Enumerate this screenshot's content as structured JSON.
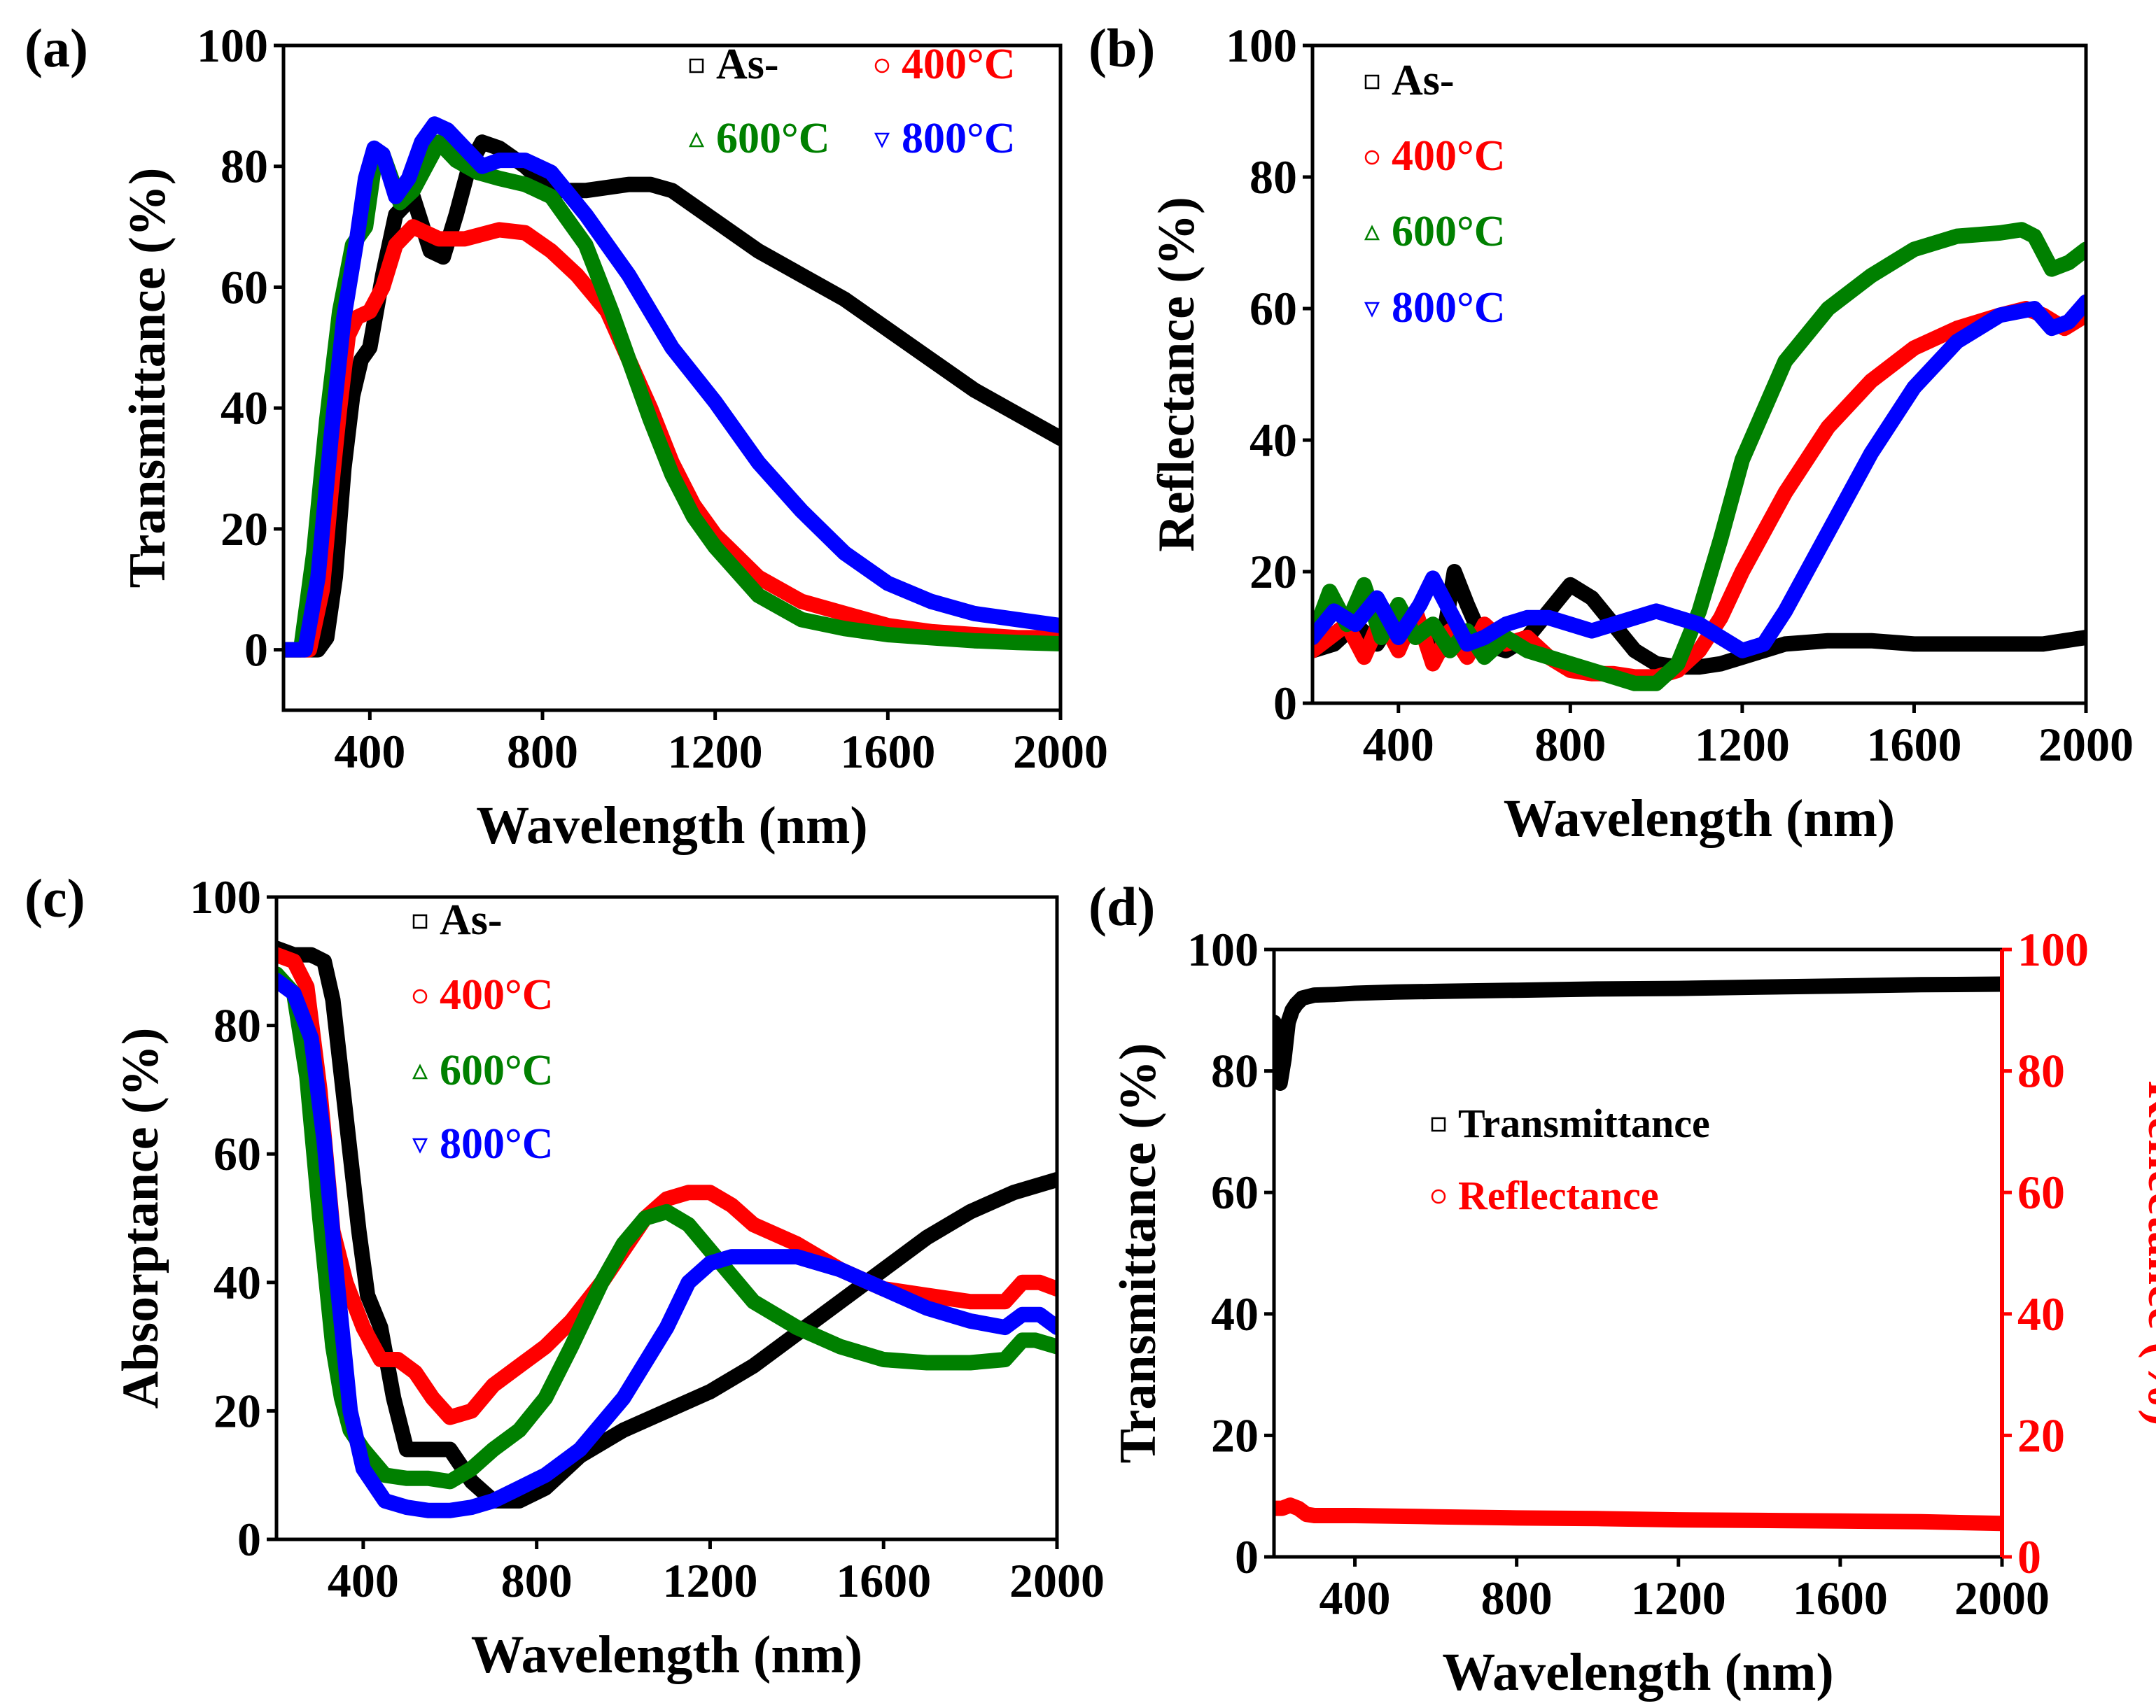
{
  "chart_data": [
    {
      "panel_label": "(a)",
      "type": "line",
      "xlabel": "Wavelength (nm)",
      "ylabel": "Transmittance (%)",
      "xlim": [
        200,
        2000
      ],
      "ylim": [
        -10,
        100
      ],
      "xticks": [
        400,
        800,
        1200,
        1600,
        2000
      ],
      "yticks": [
        0,
        20,
        40,
        60,
        80,
        100
      ],
      "grid": false,
      "legend": "top-right, two columns",
      "series": [
        {
          "name": "As-",
          "color": "#000000",
          "marker": "square",
          "x": [
            200,
            280,
            300,
            320,
            340,
            360,
            380,
            400,
            430,
            460,
            500,
            540,
            570,
            600,
            630,
            660,
            700,
            760,
            820,
            900,
            1000,
            1050,
            1100,
            1200,
            1300,
            1400,
            1500,
            1600,
            1700,
            1800,
            1900,
            2000
          ],
          "y": [
            0,
            0,
            2,
            12,
            30,
            42,
            48,
            50,
            62,
            72,
            75,
            66,
            65,
            72,
            80,
            84,
            83,
            80,
            76,
            76,
            77,
            77,
            76,
            71,
            66,
            62,
            58,
            53,
            48,
            43,
            39,
            35
          ]
        },
        {
          "name": "400°C",
          "color": "#ff0000",
          "marker": "circle",
          "x": [
            200,
            260,
            290,
            310,
            330,
            350,
            370,
            400,
            430,
            460,
            500,
            560,
            620,
            700,
            760,
            820,
            880,
            950,
            1000,
            1050,
            1100,
            1150,
            1200,
            1300,
            1400,
            1500,
            1600,
            1700,
            1800,
            1900,
            2000
          ],
          "y": [
            0,
            0,
            10,
            26,
            40,
            52,
            55,
            56,
            60,
            67,
            70,
            68,
            68,
            69.5,
            69,
            66,
            62,
            56,
            48,
            40,
            31,
            24,
            19,
            12,
            8,
            6,
            4,
            3,
            2.5,
            2,
            2
          ]
        },
        {
          "name": "600°C",
          "color": "#008000",
          "marker": "triangle-up",
          "x": [
            200,
            240,
            270,
            300,
            330,
            360,
            390,
            410,
            430,
            450,
            470,
            500,
            530,
            560,
            600,
            650,
            700,
            760,
            820,
            900,
            960,
            1000,
            1050,
            1100,
            1150,
            1200,
            1300,
            1400,
            1500,
            1600,
            1700,
            1800,
            1900,
            2000
          ],
          "y": [
            0,
            0,
            16,
            38,
            56,
            67,
            70,
            80,
            82,
            78,
            74,
            76,
            80,
            84,
            81,
            79,
            78,
            77,
            75,
            67,
            56,
            48,
            38,
            29,
            22,
            17,
            9,
            5,
            3.5,
            2.5,
            2,
            1.5,
            1.2,
            1
          ]
        },
        {
          "name": "800°C",
          "color": "#0000ff",
          "marker": "triangle-down",
          "x": [
            200,
            250,
            280,
            310,
            340,
            370,
            390,
            410,
            430,
            460,
            490,
            520,
            550,
            580,
            620,
            660,
            700,
            760,
            820,
            900,
            1000,
            1100,
            1200,
            1300,
            1400,
            1500,
            1600,
            1700,
            1800,
            1900,
            2000
          ],
          "y": [
            0,
            0,
            12,
            35,
            55,
            68,
            78,
            83,
            82,
            75,
            78,
            84,
            87,
            86,
            83,
            80,
            81,
            81,
            79,
            72,
            62,
            50,
            41,
            31,
            23,
            16,
            11,
            8,
            6,
            5,
            4
          ]
        }
      ]
    },
    {
      "panel_label": "(b)",
      "type": "line",
      "xlabel": "Wavelength (nm)",
      "ylabel": "Reflectance (%)",
      "xlim": [
        200,
        2000
      ],
      "ylim": [
        0,
        100
      ],
      "xticks": [
        400,
        800,
        1200,
        1600,
        2000
      ],
      "yticks": [
        0,
        20,
        40,
        60,
        80,
        100
      ],
      "grid": false,
      "legend": "top-left, one column",
      "series": [
        {
          "name": "As-",
          "color": "#000000",
          "marker": "square",
          "x": [
            200,
            250,
            300,
            350,
            400,
            450,
            500,
            530,
            560,
            600,
            650,
            700,
            750,
            800,
            850,
            900,
            950,
            1000,
            1050,
            1100,
            1150,
            1200,
            1300,
            1400,
            1500,
            1600,
            1700,
            1800,
            1900,
            2000
          ],
          "y": [
            8,
            9,
            12,
            9,
            14,
            12,
            8,
            20,
            15,
            9,
            8,
            10,
            14,
            18,
            16,
            12,
            8,
            6,
            5.5,
            5.5,
            6,
            7,
            9,
            9.5,
            9.5,
            9,
            9,
            9,
            9,
            10
          ]
        },
        {
          "name": "400°C",
          "color": "#ff0000",
          "marker": "circle",
          "x": [
            200,
            240,
            280,
            320,
            360,
            400,
            440,
            480,
            520,
            560,
            600,
            650,
            700,
            750,
            800,
            850,
            900,
            950,
            1000,
            1050,
            1100,
            1150,
            1200,
            1300,
            1400,
            1500,
            1600,
            1700,
            1800,
            1860,
            1900,
            1950,
            2000
          ],
          "y": [
            8,
            10,
            12,
            7,
            13,
            8,
            14,
            6,
            11,
            7,
            12,
            9,
            10,
            7,
            5,
            4.5,
            4.5,
            4,
            4,
            5,
            8,
            13,
            20,
            32,
            42,
            49,
            54,
            57,
            59,
            60,
            59,
            57,
            59
          ]
        },
        {
          "name": "600°C",
          "color": "#008000",
          "marker": "triangle-up",
          "x": [
            200,
            240,
            280,
            320,
            360,
            400,
            440,
            480,
            520,
            560,
            600,
            650,
            700,
            750,
            800,
            850,
            900,
            950,
            1000,
            1050,
            1100,
            1150,
            1200,
            1300,
            1400,
            1500,
            1600,
            1700,
            1800,
            1850,
            1880,
            1920,
            1960,
            2000
          ],
          "y": [
            10,
            17,
            12,
            18,
            10,
            15,
            10,
            12,
            8,
            11,
            7,
            10,
            8,
            7,
            6,
            5,
            4,
            3,
            3,
            6,
            14,
            25,
            37,
            52,
            60,
            65,
            69,
            71,
            71.5,
            72,
            71,
            66,
            67,
            69
          ]
        },
        {
          "name": "800°C",
          "color": "#0000ff",
          "marker": "triangle-down",
          "x": [
            200,
            250,
            300,
            350,
            400,
            450,
            480,
            520,
            560,
            600,
            650,
            700,
            750,
            800,
            850,
            900,
            950,
            1000,
            1050,
            1100,
            1150,
            1200,
            1250,
            1300,
            1400,
            1500,
            1600,
            1700,
            1800,
            1880,
            1920,
            1960,
            2000
          ],
          "y": [
            10,
            14,
            12,
            16,
            10,
            15,
            19,
            14,
            9,
            10,
            12,
            13,
            13,
            12,
            11,
            12,
            13,
            14,
            13,
            12,
            10,
            8,
            9,
            14,
            26,
            38,
            48,
            55,
            59,
            60,
            57,
            58,
            61
          ]
        }
      ]
    },
    {
      "panel_label": "(c)",
      "type": "line",
      "xlabel": "Wavelength (nm)",
      "ylabel": "Absorptance (%)",
      "xlim": [
        200,
        2000
      ],
      "ylim": [
        0,
        100
      ],
      "xticks": [
        400,
        800,
        1200,
        1600,
        2000
      ],
      "yticks": [
        0,
        20,
        40,
        60,
        80,
        100
      ],
      "grid": false,
      "legend": "top-center, one column",
      "series": [
        {
          "name": "As-",
          "color": "#000000",
          "marker": "square",
          "x": [
            200,
            240,
            280,
            310,
            330,
            350,
            370,
            390,
            410,
            440,
            470,
            500,
            550,
            600,
            650,
            700,
            760,
            820,
            900,
            1000,
            1100,
            1200,
            1300,
            1400,
            1500,
            1600,
            1700,
            1800,
            1900,
            2000
          ],
          "y": [
            92,
            91,
            91,
            90,
            84,
            72,
            60,
            48,
            38,
            33,
            22,
            14,
            14,
            14,
            9,
            6,
            6,
            8,
            13,
            17,
            20,
            23,
            27,
            32,
            37,
            42,
            47,
            51,
            54,
            56
          ]
        },
        {
          "name": "400°C",
          "color": "#ff0000",
          "marker": "circle",
          "x": [
            200,
            240,
            270,
            300,
            330,
            360,
            400,
            440,
            480,
            520,
            560,
            600,
            650,
            700,
            760,
            820,
            880,
            950,
            1000,
            1050,
            1100,
            1150,
            1200,
            1250,
            1300,
            1400,
            1500,
            1600,
            1700,
            1800,
            1880,
            1920,
            1960,
            2000
          ],
          "y": [
            91,
            90,
            86,
            70,
            48,
            40,
            33,
            28,
            28,
            26,
            22,
            19,
            20,
            24,
            27,
            30,
            34,
            40,
            45,
            50,
            53,
            54,
            54,
            52,
            49,
            46,
            42,
            39,
            38,
            37,
            37,
            40,
            40,
            39
          ]
        },
        {
          "name": "600°C",
          "color": "#008000",
          "marker": "triangle-up",
          "x": [
            200,
            240,
            270,
            300,
            330,
            350,
            370,
            400,
            450,
            500,
            550,
            600,
            650,
            700,
            760,
            820,
            880,
            950,
            1000,
            1050,
            1100,
            1150,
            1200,
            1250,
            1300,
            1400,
            1500,
            1600,
            1700,
            1800,
            1880,
            1920,
            1950,
            2000
          ],
          "y": [
            88,
            85,
            72,
            50,
            30,
            22,
            17,
            14,
            10,
            9.5,
            9.5,
            9,
            11,
            14,
            17,
            22,
            30,
            40,
            46,
            50,
            51,
            49,
            45,
            41,
            37,
            33,
            30,
            28,
            27.5,
            27.5,
            28,
            31,
            31,
            30
          ]
        },
        {
          "name": "800°C",
          "color": "#0000ff",
          "marker": "triangle-down",
          "x": [
            200,
            240,
            280,
            310,
            340,
            370,
            400,
            450,
            500,
            550,
            600,
            650,
            700,
            760,
            820,
            900,
            1000,
            1100,
            1150,
            1200,
            1250,
            1300,
            1400,
            1500,
            1600,
            1700,
            1800,
            1880,
            1920,
            1960,
            2000
          ],
          "y": [
            87,
            85,
            78,
            62,
            40,
            20,
            11,
            6,
            5,
            4.5,
            4.5,
            5,
            6,
            8,
            10,
            14,
            22,
            33,
            40,
            43,
            44,
            44,
            44,
            42,
            39,
            36,
            34,
            33,
            35,
            35,
            33
          ]
        }
      ]
    },
    {
      "panel_label": "(d)",
      "type": "line",
      "xlabel": "Wavelength (nm)",
      "ylabel": "Transmittance (%)",
      "ylabel_right": "Reflectance (%)",
      "xlim": [
        200,
        2000
      ],
      "ylim": [
        0,
        100
      ],
      "ylim_right": [
        0,
        100
      ],
      "xticks": [
        400,
        800,
        1200,
        1600,
        2000
      ],
      "yticks": [
        0,
        20,
        40,
        60,
        80,
        100
      ],
      "grid": false,
      "legend": "center-left, one column",
      "series": [
        {
          "name": "Transmittance",
          "color": "#000000",
          "marker": "square",
          "axis": "left",
          "x": [
            200,
            215,
            225,
            235,
            245,
            255,
            270,
            300,
            350,
            400,
            500,
            600,
            800,
            1000,
            1200,
            1400,
            1600,
            1800,
            2000
          ],
          "y": [
            88,
            78,
            82,
            88,
            90,
            91,
            92,
            92.5,
            92.6,
            92.8,
            93,
            93.1,
            93.3,
            93.5,
            93.6,
            93.8,
            94,
            94.2,
            94.3
          ]
        },
        {
          "name": "Reflectance",
          "color": "#ff0000",
          "marker": "circle",
          "axis": "right",
          "x": [
            200,
            220,
            240,
            260,
            280,
            300,
            400,
            600,
            800,
            1000,
            1200,
            1400,
            1600,
            1800,
            2000
          ],
          "y": [
            8,
            8,
            8.5,
            8,
            7,
            6.8,
            6.8,
            6.6,
            6.4,
            6.3,
            6.1,
            6,
            5.9,
            5.8,
            5.5
          ]
        }
      ]
    }
  ]
}
